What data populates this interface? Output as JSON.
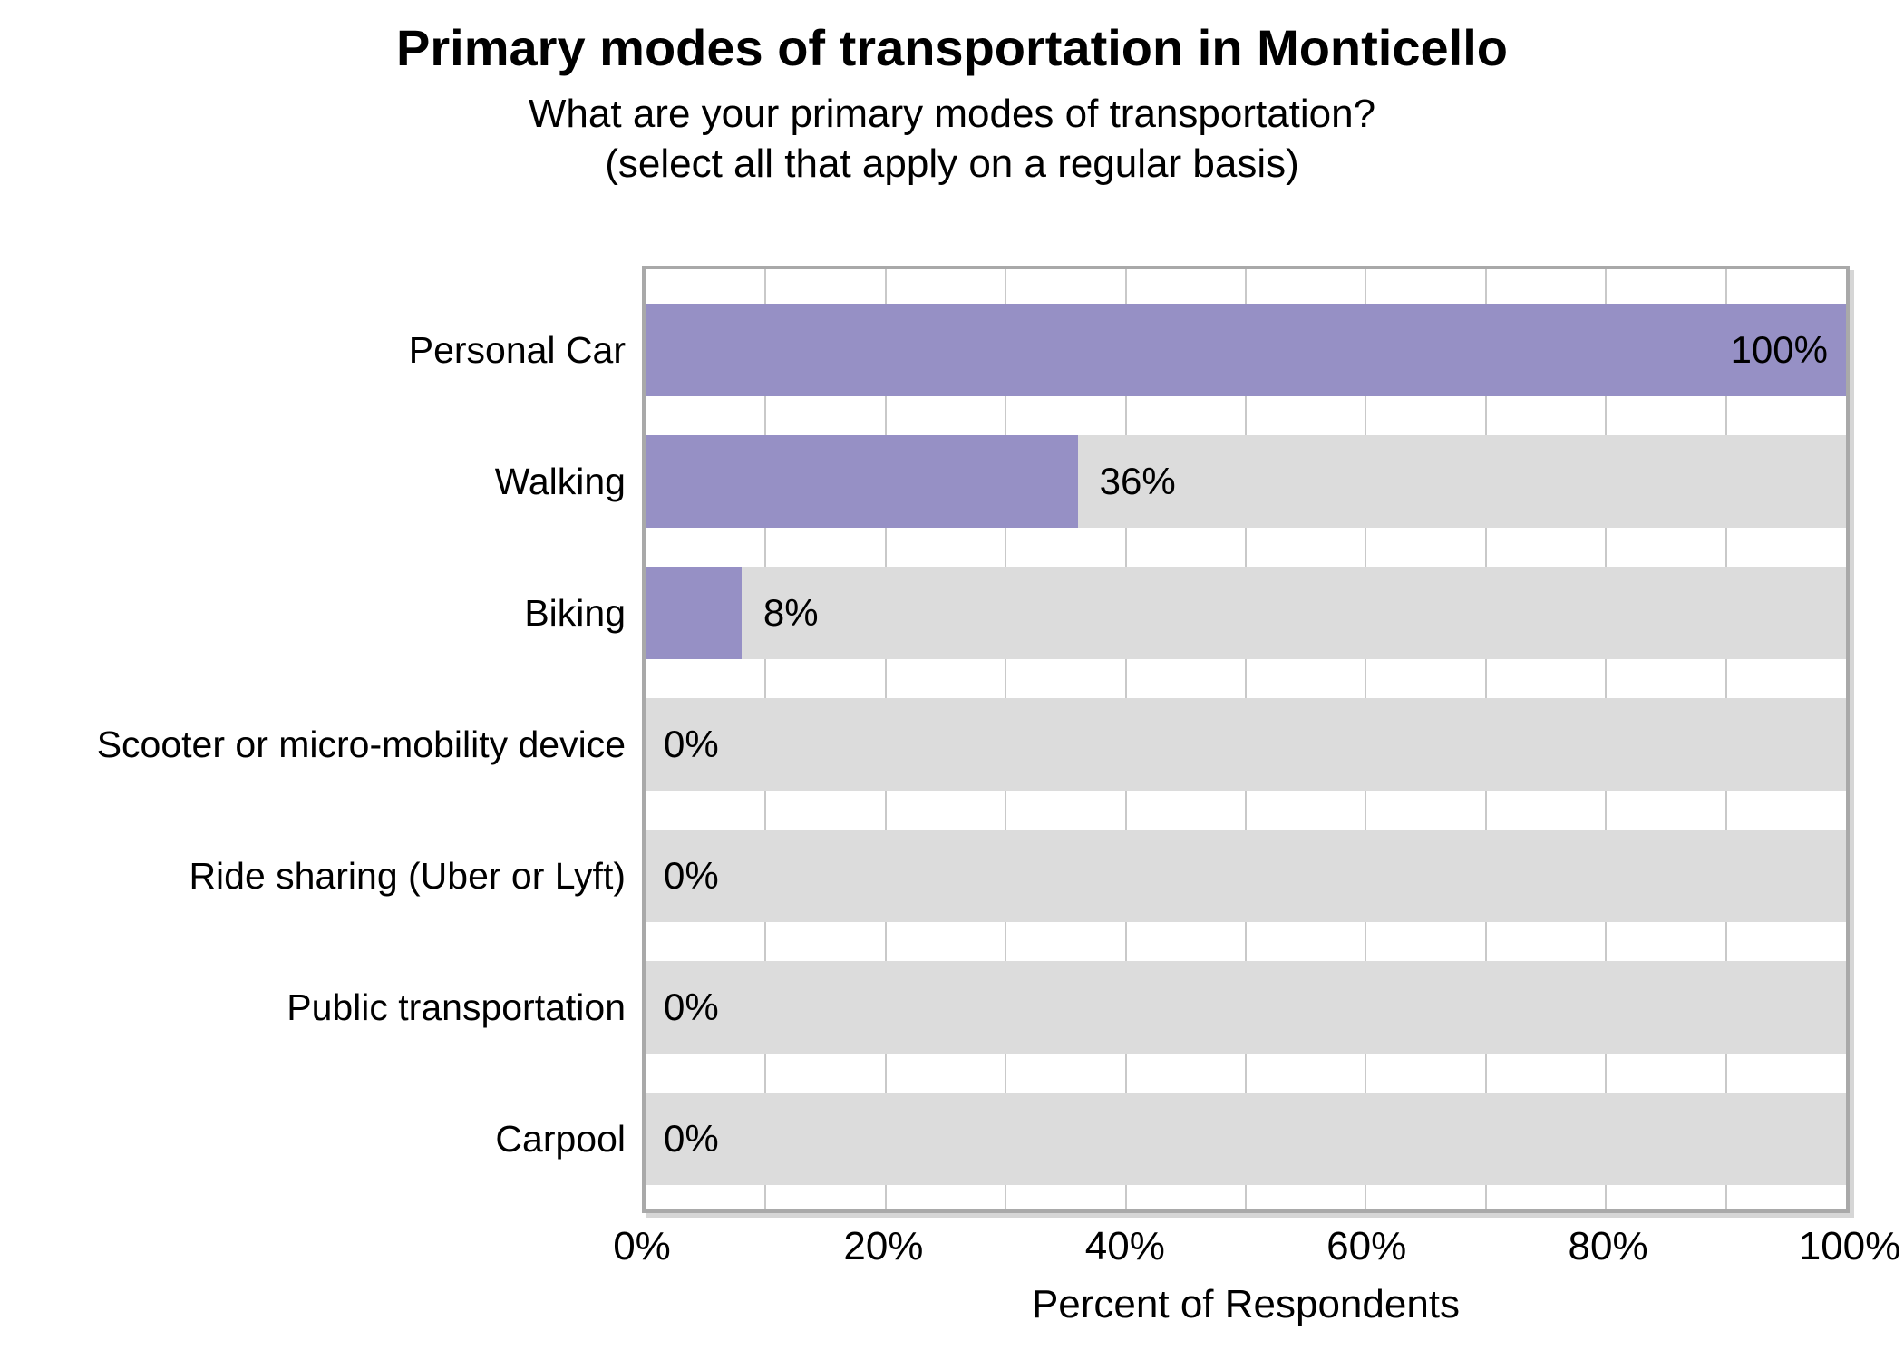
{
  "title": "Primary modes of transportation in Monticello",
  "subtitle_line1": "What are your primary modes of transportation?",
  "subtitle_line2": "(select all that apply on a regular basis)",
  "chart_data": {
    "type": "bar",
    "orientation": "horizontal",
    "title": "Primary modes of transportation in Monticello",
    "subtitle": "What are your primary modes of transportation? (select all that apply on a regular basis)",
    "categories": [
      "Personal Car",
      "Walking",
      "Biking",
      "Scooter or micro-mobility device",
      "Ride sharing (Uber or Lyft)",
      "Public transportation",
      "Carpool"
    ],
    "values": [
      100,
      36,
      8,
      0,
      0,
      0,
      0
    ],
    "value_labels": [
      "100%",
      "36%",
      "8%",
      "0%",
      "0%",
      "0%",
      "0%"
    ],
    "xlabel": "Percent of Respondents",
    "ylabel": "",
    "xlim": [
      0,
      100
    ],
    "xticks": [
      {
        "value": 0,
        "label": "0%"
      },
      {
        "value": 20,
        "label": "20%"
      },
      {
        "value": 40,
        "label": "40%"
      },
      {
        "value": 60,
        "label": "60%"
      },
      {
        "value": 80,
        "label": "80%"
      },
      {
        "value": 100,
        "label": "100%"
      }
    ],
    "gridline_interval": 10,
    "grid": "vertical",
    "legend": "none",
    "colors": {
      "bar": "#9690C5",
      "track": "#DCDCDC",
      "gridline": "#C9C9C9",
      "plot_border": "#A9A9A9",
      "plot_shadow": "#D6D6D6",
      "text": "#000000",
      "background": "#FFFFFF"
    }
  }
}
